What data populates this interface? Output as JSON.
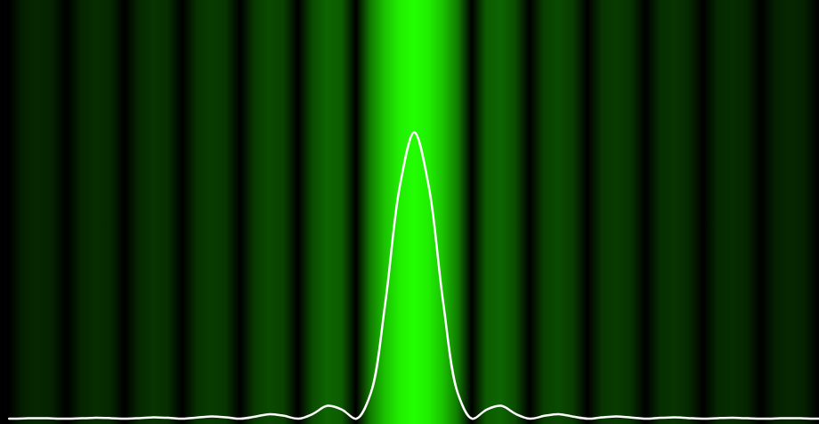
{
  "chart_data": {
    "type": "line",
    "x": [
      -7,
      -6.75,
      -6.5,
      -6.25,
      -6,
      -5.75,
      -5.5,
      -5.25,
      -5,
      -4.75,
      -4.5,
      -4.25,
      -4,
      -3.75,
      -3.5,
      -3.25,
      -3,
      -2.75,
      -2.5,
      -2.25,
      -2,
      -1.75,
      -1.5,
      -1.25,
      -1,
      -0.75,
      -0.5,
      -0.25,
      0,
      0.25,
      0.5,
      0.75,
      1,
      1.25,
      1.5,
      1.75,
      2,
      2.25,
      2.5,
      2.75,
      3,
      3.25,
      3.5,
      3.75,
      4,
      4.25,
      4.5,
      4.75,
      5,
      5.25,
      5.5,
      5.75,
      6,
      6.25,
      6.5,
      6.75,
      7
    ],
    "values": [
      0,
      0.001,
      0.002,
      0.001,
      0,
      0.0015,
      0.003,
      0.002,
      0,
      0.002,
      0.005,
      0.003,
      0,
      0.004,
      0.008,
      0.005,
      0,
      0.007,
      0.016,
      0.01,
      0,
      0.017,
      0.045,
      0.032,
      0,
      0.09,
      0.405,
      0.811,
      1,
      0.811,
      0.405,
      0.09,
      0,
      0.032,
      0.045,
      0.017,
      0,
      0.01,
      0.016,
      0.007,
      0,
      0.005,
      0.008,
      0.004,
      0,
      0.003,
      0.005,
      0.002,
      0,
      0.002,
      0.003,
      0.0015,
      0,
      0.001,
      0.002,
      0.001,
      0
    ],
    "color": "#ffffff",
    "xlim": [
      -7.15,
      7.0
    ],
    "ylim": [
      -0.02,
      1.46
    ],
    "tick_labels": false,
    "grid": false
  }
}
